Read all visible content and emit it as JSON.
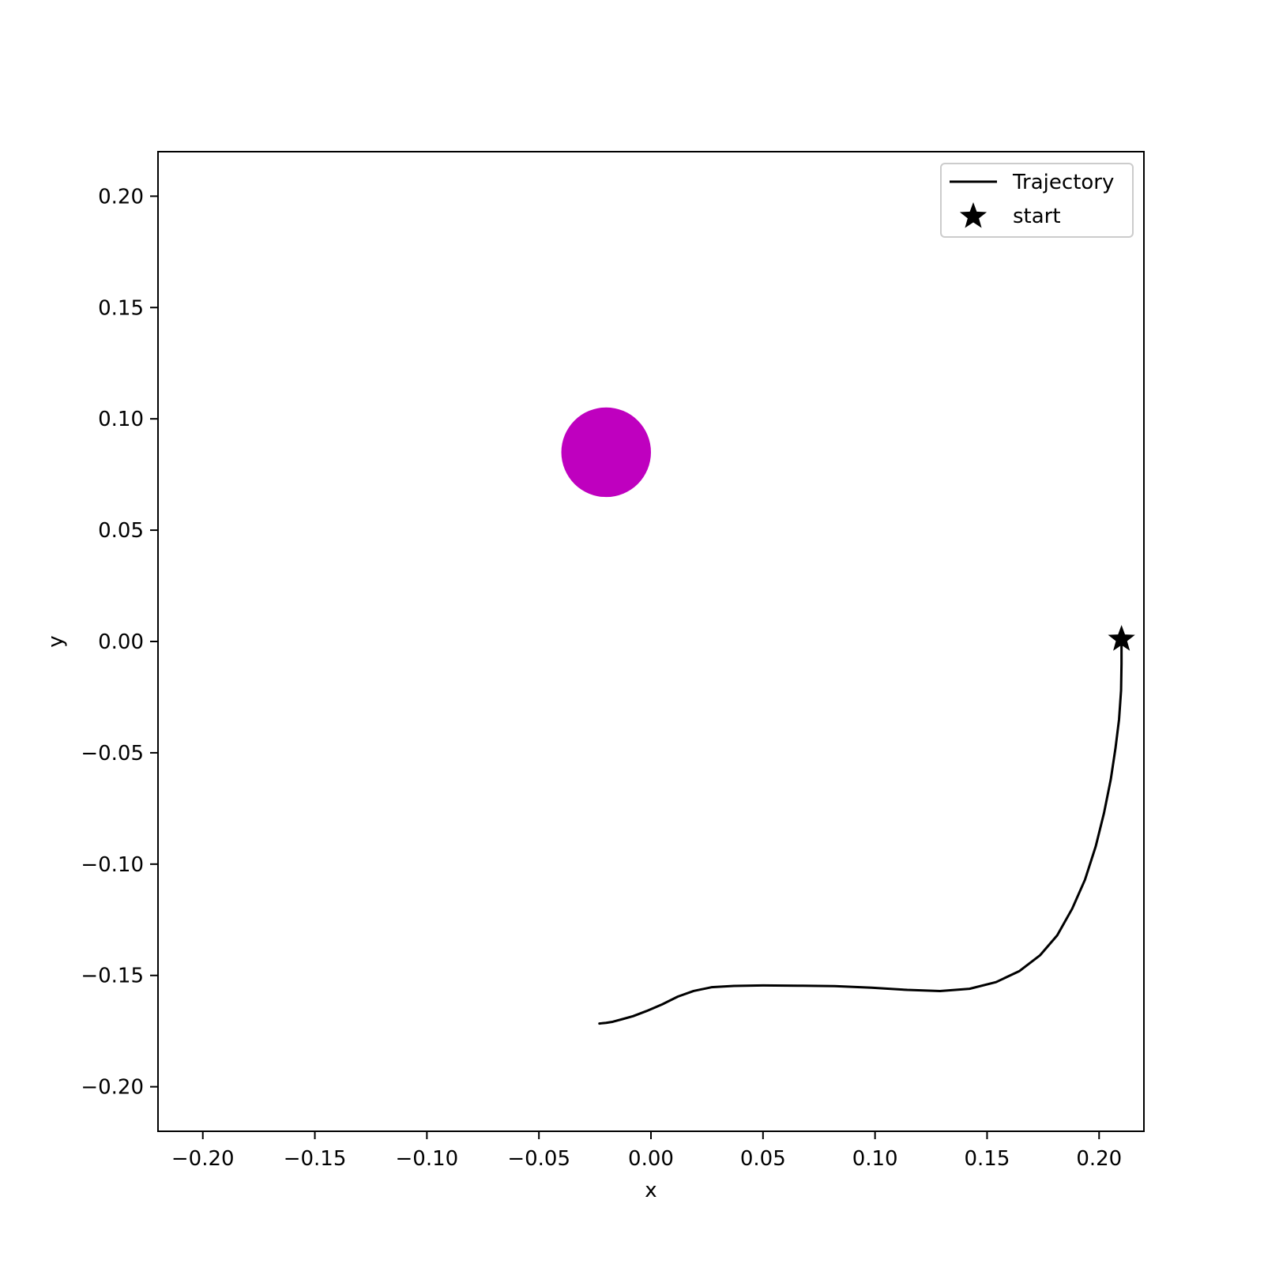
{
  "chart_data": {
    "type": "line",
    "title": "",
    "xlabel": "x",
    "ylabel": "y",
    "xlim": [
      -0.22,
      0.22
    ],
    "ylim": [
      -0.22,
      0.22
    ],
    "grid": false,
    "legend_position": "top-right",
    "x_ticks": [
      -0.2,
      -0.15,
      -0.1,
      -0.05,
      0.0,
      0.05,
      0.1,
      0.15,
      0.2
    ],
    "x_tick_labels": [
      "−0.20",
      "−0.15",
      "−0.10",
      "−0.05",
      "0.00",
      "0.05",
      "0.10",
      "0.15",
      "0.20"
    ],
    "y_ticks": [
      0.2,
      0.15,
      0.1,
      0.05,
      0.0,
      -0.05,
      -0.1,
      -0.15,
      -0.2
    ],
    "y_tick_labels": [
      "0.20",
      "0.15",
      "0.10",
      "0.05",
      "0.00",
      "−0.05",
      "−0.10",
      "−0.15",
      "−0.20"
    ],
    "series": [
      {
        "name": "Trajectory",
        "color": "#000000",
        "x": [
          0.21,
          0.21,
          0.2098,
          0.2089,
          0.2073,
          0.2052,
          0.2022,
          0.1985,
          0.1937,
          0.188,
          0.1813,
          0.1736,
          0.1645,
          0.154,
          0.1422,
          0.129,
          0.1144,
          0.0985,
          0.082,
          0.0655,
          0.05,
          0.037,
          0.027,
          0.019,
          0.012,
          0.005,
          -0.002,
          -0.008,
          -0.013,
          -0.017,
          -0.02,
          -0.022,
          -0.023
        ],
        "y": [
          0.0,
          -0.01,
          -0.022,
          -0.035,
          -0.048,
          -0.062,
          -0.077,
          -0.092,
          -0.107,
          -0.12,
          -0.132,
          -0.141,
          -0.148,
          -0.153,
          -0.156,
          -0.157,
          -0.1565,
          -0.1555,
          -0.1548,
          -0.1546,
          -0.1545,
          -0.1547,
          -0.1553,
          -0.157,
          -0.1595,
          -0.163,
          -0.166,
          -0.1683,
          -0.1697,
          -0.1708,
          -0.1713,
          -0.1715,
          -0.1716
        ]
      }
    ],
    "markers": [
      {
        "name": "start",
        "shape": "star",
        "color": "#000000",
        "x": 0.21,
        "y": 0.001
      }
    ],
    "shapes": [
      {
        "shape": "circle",
        "color": "#bf00bf",
        "cx": -0.02,
        "cy": 0.085,
        "r": 0.02
      }
    ],
    "legend": [
      {
        "label": "Trajectory",
        "symbol": "line",
        "color": "#000000"
      },
      {
        "label": "start",
        "symbol": "star",
        "color": "#000000"
      }
    ]
  }
}
